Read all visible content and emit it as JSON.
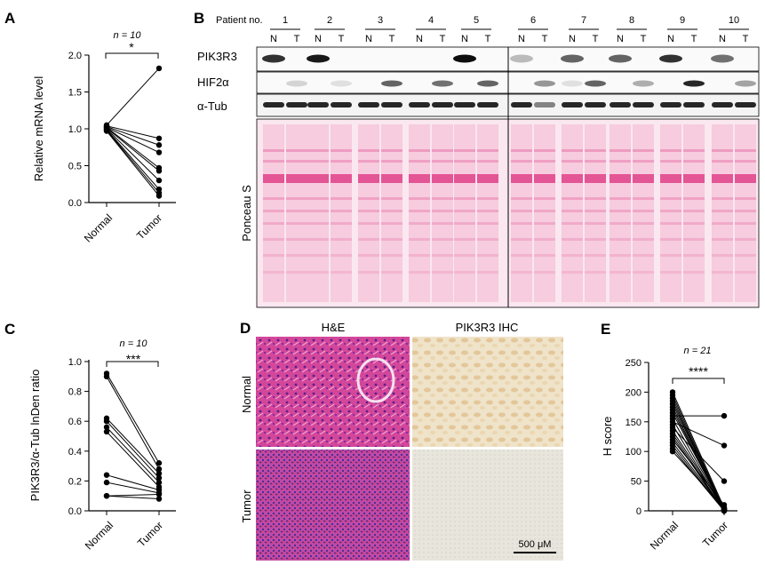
{
  "panels": {
    "A": {
      "letter": "A",
      "n_label": "n = 10",
      "significance": "*",
      "ylabel": "Relative mRNA level",
      "yticks": [
        "0.0",
        "0.5",
        "1.0",
        "1.5",
        "2.0"
      ],
      "categories": [
        "Normal",
        "Tumor"
      ]
    },
    "B": {
      "letter": "B",
      "patient_header": "Patient no.",
      "patients": [
        "1",
        "2",
        "3",
        "4",
        "5",
        "6",
        "7",
        "8",
        "9",
        "10"
      ],
      "lane_labels": [
        "N",
        "T"
      ],
      "blot_rows": [
        "PIK3R3",
        "HIF2α",
        "α-Tub"
      ],
      "stain_label": "Ponceau S"
    },
    "C": {
      "letter": "C",
      "n_label": "n = 10",
      "significance": "***",
      "ylabel": "PIK3R3/α-Tub lnDen ratio",
      "yticks": [
        "0.0",
        "0.2",
        "0.4",
        "0.6",
        "0.8",
        "1.0"
      ],
      "categories": [
        "Normal",
        "Tumor"
      ]
    },
    "D": {
      "letter": "D",
      "col_titles": [
        "H&E",
        "PIK3R3 IHC"
      ],
      "row_labels": [
        "Normal",
        "Tumor"
      ],
      "scale_bar": "500 μM"
    },
    "E": {
      "letter": "E",
      "n_label": "n = 21",
      "significance": "****",
      "ylabel": "H score",
      "yticks": [
        "0",
        "50",
        "100",
        "150",
        "200",
        "250"
      ],
      "categories": [
        "Normal",
        "Tumor"
      ]
    }
  },
  "chart_data": [
    {
      "panel": "A",
      "type": "scatter",
      "categories": [
        "Normal",
        "Tumor"
      ],
      "ylabel": "Relative mRNA level",
      "ylim": [
        0,
        2.0
      ],
      "pairs": [
        [
          1.05,
          1.82
        ],
        [
          1.04,
          0.87
        ],
        [
          1.03,
          0.78
        ],
        [
          1.02,
          0.68
        ],
        [
          1.02,
          0.47
        ],
        [
          1.01,
          0.43
        ],
        [
          1.0,
          0.3
        ],
        [
          0.99,
          0.18
        ],
        [
          0.98,
          0.13
        ],
        [
          0.97,
          0.09
        ]
      ]
    },
    {
      "panel": "C",
      "type": "scatter",
      "categories": [
        "Normal",
        "Tumor"
      ],
      "ylabel": "PIK3R3/α-Tub lnDen ratio",
      "ylim": [
        0,
        1.0
      ],
      "pairs": [
        [
          0.92,
          0.32
        ],
        [
          0.9,
          0.28
        ],
        [
          0.62,
          0.25
        ],
        [
          0.6,
          0.22
        ],
        [
          0.56,
          0.19
        ],
        [
          0.53,
          0.16
        ],
        [
          0.24,
          0.14
        ],
        [
          0.19,
          0.12
        ],
        [
          0.1,
          0.11
        ],
        [
          0.1,
          0.08
        ]
      ]
    },
    {
      "panel": "E",
      "type": "scatter",
      "categories": [
        "Normal",
        "Tumor"
      ],
      "ylabel": "H score",
      "ylim": [
        0,
        250
      ],
      "pairs": [
        [
          200,
          5
        ],
        [
          190,
          0
        ],
        [
          180,
          3
        ],
        [
          170,
          2
        ],
        [
          160,
          160
        ],
        [
          150,
          110
        ],
        [
          140,
          50
        ],
        [
          120,
          10
        ],
        [
          110,
          0
        ],
        [
          100,
          5
        ],
        [
          130,
          0
        ],
        [
          165,
          2
        ],
        [
          155,
          1
        ],
        [
          145,
          0
        ],
        [
          135,
          3
        ],
        [
          125,
          0
        ],
        [
          115,
          2
        ],
        [
          105,
          0
        ],
        [
          175,
          1
        ],
        [
          185,
          0
        ],
        [
          195,
          2
        ]
      ]
    }
  ]
}
